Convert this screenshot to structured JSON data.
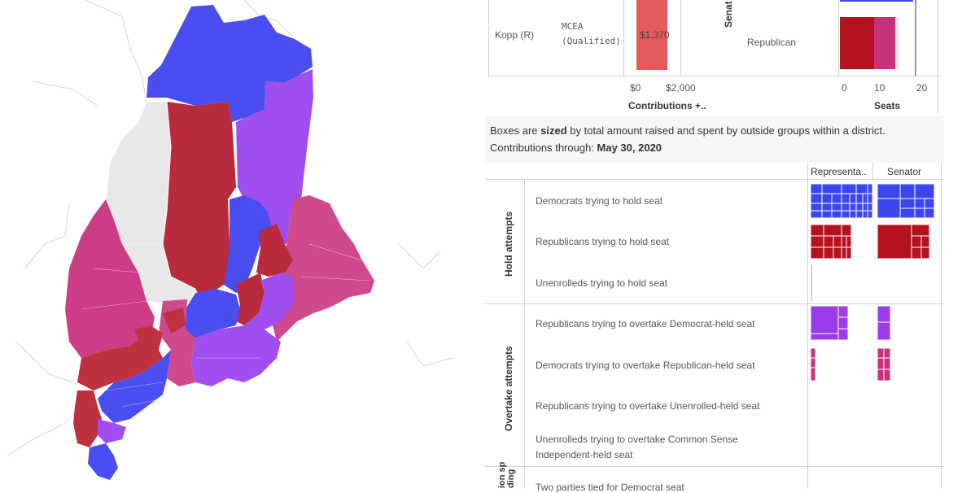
{
  "top_chart": {
    "candidate": "Kopp (R)",
    "committee_line1": "MCEA",
    "committee_line2": "(Qualified)",
    "bar_value": "$1,370",
    "axis_tick_0": "$0",
    "axis_tick_1": "$2,000",
    "axis_title": "Contributions +..",
    "senate_label": "Senat",
    "party_label": "Republican",
    "seats_tick_0": "0",
    "seats_tick_1": "10",
    "seats_tick_2": "20",
    "seats_title": "Seats"
  },
  "description": {
    "line1_prefix": "Boxes are ",
    "line1_bold": "sized",
    "line1_suffix": " by total amount raised and spent by outside groups within a district.",
    "line2_prefix": "Contributions through: ",
    "line2_bold": "May 30, 2020"
  },
  "table": {
    "col_rep": "Representa..",
    "col_sen": "Senator",
    "group_hold": "Hold attempts",
    "group_overtake": "Overtake attempts",
    "group_third": "ion sp\nding",
    "rows": [
      "Democrats trying to hold seat",
      "Republicans trying to hold seat",
      "Unenrolleds trying to hold seat",
      "Republicans trying to overtake Democrat-held seat",
      "Democrats trying to overtake Republican-held seat",
      "Republicans trying to overtake Unenrolled-held seat",
      "Unenrolleds trying to overtake Common Sense",
      "Independent-held seat",
      "Two parties tied for Democrat seat"
    ]
  },
  "colors": {
    "democrat": "#3c46f0",
    "republican": "#b4121e",
    "overtake_r": "#9b3ce8",
    "overtake_d": "#c8327a",
    "neutral": "#e6e6e6"
  }
}
